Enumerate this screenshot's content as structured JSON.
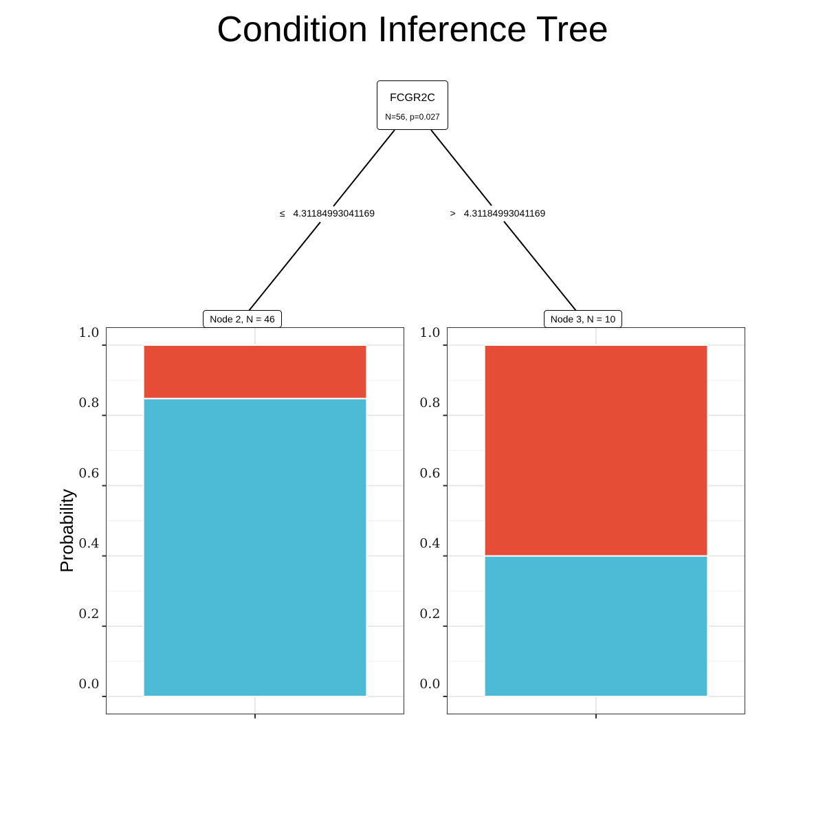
{
  "chart_data": {
    "type": "bar",
    "title": "Condition Inference Tree",
    "ylabel": "Probability",
    "ylim": [
      0,
      1
    ],
    "yticks": [
      "0.0",
      "0.2",
      "0.4",
      "0.6",
      "0.8",
      "1.0"
    ],
    "grid": true,
    "root": {
      "variable": "FCGR2C",
      "stats": "N=56, p=0.027"
    },
    "splits": [
      {
        "symbol": "≤",
        "threshold": "4.31184993041169"
      },
      {
        "symbol": ">",
        "threshold": "4.31184993041169"
      }
    ],
    "nodes": [
      {
        "label": "Node 2, N = 46",
        "values": [
          0.848,
          0.152
        ]
      },
      {
        "label": "Node 3, N = 10",
        "values": [
          0.4,
          0.6
        ]
      }
    ],
    "class_colors": [
      "#4DBAD6",
      "#E64D37"
    ]
  }
}
